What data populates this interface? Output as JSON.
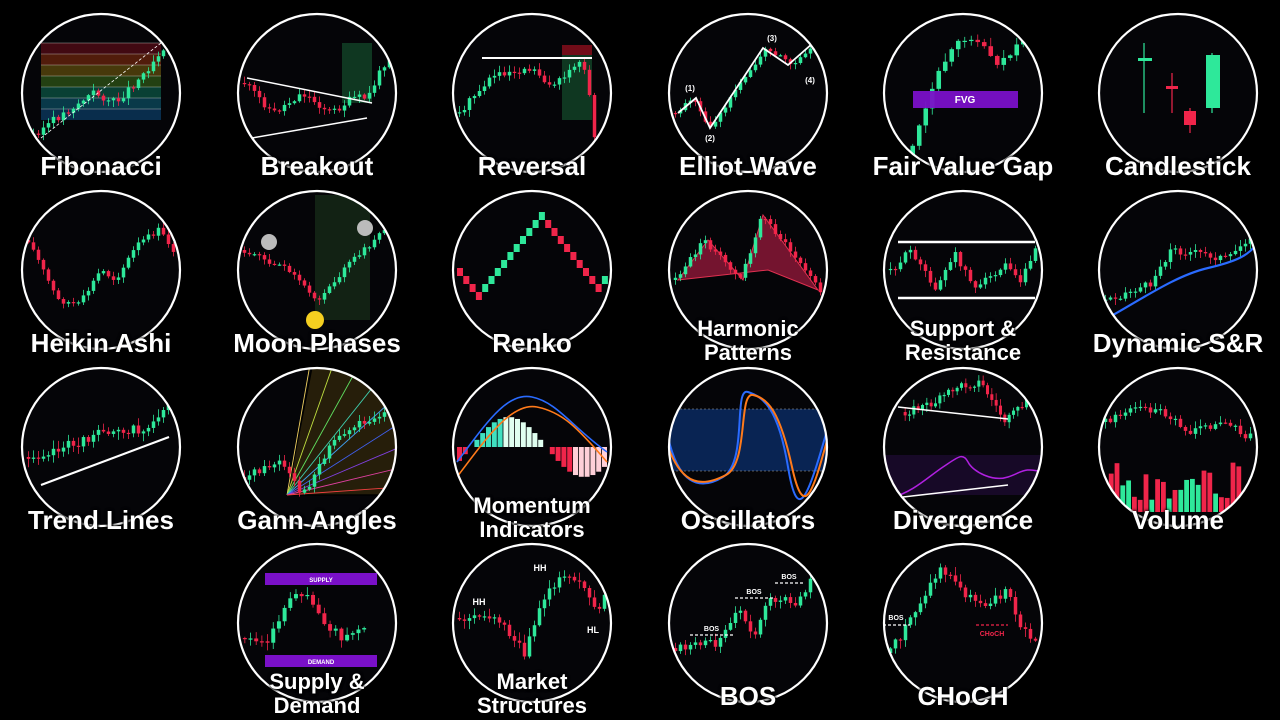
{
  "colors": {
    "background": "#000000",
    "bull": "#2ee89a",
    "bear": "#f0254a",
    "ring": "#ffffff",
    "zone": "#7a10c8",
    "blue": "#2a6bff",
    "orange": "#ff7a1a"
  },
  "tiles": [
    {
      "id": "fibonacci",
      "label": [
        "Fibonacci"
      ]
    },
    {
      "id": "breakout",
      "label": [
        "Breakout"
      ]
    },
    {
      "id": "reversal",
      "label": [
        "Reversal"
      ]
    },
    {
      "id": "elliot-wave",
      "label": [
        "Elliot Wave"
      ],
      "annotations": [
        "(1)",
        "(2)",
        "(3)",
        "(4)"
      ]
    },
    {
      "id": "fair-value-gap",
      "label": [
        "Fair Value Gap"
      ],
      "annotations": [
        "FVG"
      ]
    },
    {
      "id": "candlestick",
      "label": [
        "Candlestick"
      ]
    },
    {
      "id": "heikin-ashi",
      "label": [
        "Heikin Ashi"
      ]
    },
    {
      "id": "moon-phases",
      "label": [
        "Moon Phases"
      ]
    },
    {
      "id": "renko",
      "label": [
        "Renko"
      ]
    },
    {
      "id": "harmonic-patterns",
      "label": [
        "Harmonic",
        "Patterns"
      ]
    },
    {
      "id": "support-resistance",
      "label": [
        "Support &",
        "Resistance"
      ]
    },
    {
      "id": "dynamic-sr",
      "label": [
        "Dynamic S&R"
      ]
    },
    {
      "id": "trend-lines",
      "label": [
        "Trend Lines"
      ]
    },
    {
      "id": "gann-angles",
      "label": [
        "Gann Angles"
      ]
    },
    {
      "id": "momentum-indicators",
      "label": [
        "Momentum",
        "Indicators"
      ]
    },
    {
      "id": "oscillators",
      "label": [
        "Oscillators"
      ]
    },
    {
      "id": "divergence",
      "label": [
        "Divergence"
      ]
    },
    {
      "id": "volume",
      "label": [
        "Volume"
      ]
    },
    {
      "id": "supply-demand",
      "label": [
        "Supply &",
        "Demand"
      ],
      "annotations": [
        "SUPPLY",
        "DEMAND"
      ]
    },
    {
      "id": "market-structures",
      "label": [
        "Market",
        "Structures"
      ],
      "annotations": [
        "HH",
        "HH",
        "HL"
      ]
    },
    {
      "id": "bos",
      "label": [
        "BOS"
      ],
      "annotations": [
        "BOS",
        "BOS",
        "BOS"
      ]
    },
    {
      "id": "choch",
      "label": [
        "CHoCH"
      ],
      "annotations": [
        "BOS",
        "CHoCH"
      ]
    }
  ]
}
